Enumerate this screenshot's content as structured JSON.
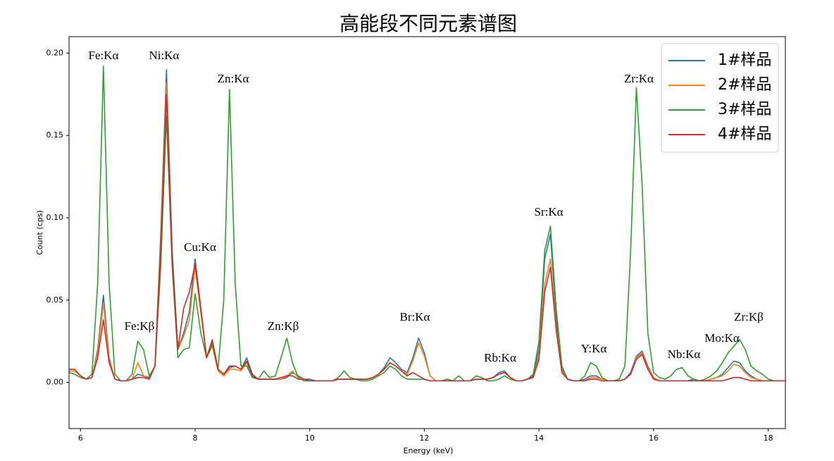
{
  "chart_data": {
    "type": "line",
    "title": "高能段不同元素谱图",
    "xlabel": "Energy (keV)",
    "ylabel": "Count (cps)",
    "xlim": [
      5.8,
      18.3
    ],
    "ylim": [
      -0.028,
      0.21
    ],
    "xticks": [
      6,
      8,
      10,
      12,
      14,
      16,
      18
    ],
    "yticks": [
      {
        "value": 0,
        "label": "0.00"
      },
      0.05,
      {
        "value": 0.1,
        "label": "0.10"
      },
      0.15,
      {
        "value": 0.2,
        "label": "0.20"
      }
    ],
    "grid": false,
    "legend": "upper right",
    "annotations": [
      "Fe:Kα",
      "Ni:Kα",
      "Zn:Kα",
      "Cu:Kα",
      "Fe:Kβ",
      "Zn:Kβ",
      "Br:Kα",
      "Rb:Kα",
      "Sr:Kα",
      "Y:Kα",
      "Zr:Kα",
      "Nb:Kα",
      "Mo:Kα",
      "Zr:Kβ"
    ],
    "x": [
      5.8,
      5.9,
      6.0,
      6.1,
      6.2,
      6.3,
      6.4,
      6.5,
      6.6,
      6.7,
      6.8,
      6.9,
      7.0,
      7.1,
      7.2,
      7.3,
      7.4,
      7.5,
      7.6,
      7.7,
      7.8,
      7.9,
      8.0,
      8.1,
      8.2,
      8.3,
      8.4,
      8.5,
      8.6,
      8.7,
      8.8,
      8.9,
      9.0,
      9.1,
      9.2,
      9.3,
      9.4,
      9.5,
      9.6,
      9.7,
      9.8,
      9.9,
      10.0,
      10.1,
      10.2,
      10.3,
      10.4,
      10.5,
      10.6,
      10.7,
      10.8,
      10.9,
      11.0,
      11.1,
      11.2,
      11.3,
      11.4,
      11.5,
      11.6,
      11.7,
      11.8,
      11.9,
      12.0,
      12.1,
      12.2,
      12.3,
      12.4,
      12.5,
      12.6,
      12.7,
      12.8,
      12.9,
      13.0,
      13.1,
      13.2,
      13.3,
      13.4,
      13.5,
      13.6,
      13.7,
      13.8,
      13.9,
      14.0,
      14.1,
      14.2,
      14.3,
      14.4,
      14.5,
      14.6,
      14.7,
      14.8,
      14.9,
      15.0,
      15.1,
      15.2,
      15.3,
      15.4,
      15.5,
      15.6,
      15.7,
      15.8,
      15.9,
      16.0,
      16.1,
      16.2,
      16.3,
      16.4,
      16.5,
      16.6,
      16.7,
      16.8,
      16.9,
      17.0,
      17.1,
      17.2,
      17.3,
      17.4,
      17.5,
      17.6,
      17.7,
      17.8,
      17.9,
      18.0,
      18.1,
      18.2,
      18.3
    ],
    "series": [
      {
        "name": "1#样品",
        "color": "#1f77b4",
        "values": [
          0.007,
          0.007,
          0.004,
          0.002,
          0.003,
          0.02,
          0.053,
          0.015,
          0.002,
          0.001,
          0.001,
          0.002,
          0.005,
          0.004,
          0.003,
          0.01,
          0.09,
          0.19,
          0.08,
          0.02,
          0.03,
          0.043,
          0.075,
          0.045,
          0.015,
          0.025,
          0.008,
          0.005,
          0.01,
          0.01,
          0.008,
          0.015,
          0.005,
          0.002,
          0.002,
          0.002,
          0.002,
          0.002,
          0.003,
          0.006,
          0.004,
          0.002,
          0.002,
          0.001,
          0.001,
          0.001,
          0.001,
          0.002,
          0.002,
          0.002,
          0.002,
          0.002,
          0.002,
          0.003,
          0.005,
          0.009,
          0.015,
          0.012,
          0.008,
          0.006,
          0.015,
          0.027,
          0.018,
          0.004,
          0.001,
          0.001,
          0.001,
          0.001,
          0.001,
          0.001,
          0.001,
          0.002,
          0.002,
          0.002,
          0.003,
          0.006,
          0.007,
          0.003,
          0.001,
          0.001,
          0.002,
          0.004,
          0.02,
          0.075,
          0.09,
          0.04,
          0.008,
          0.002,
          0.001,
          0.001,
          0.002,
          0.004,
          0.004,
          0.002,
          0.001,
          0.001,
          0.001,
          0.002,
          0.006,
          0.016,
          0.019,
          0.01,
          0.003,
          0.001,
          0.001,
          0.001,
          0.001,
          0.001,
          0.001,
          0.002,
          0.001,
          0.001,
          0.002,
          0.003,
          0.005,
          0.009,
          0.013,
          0.012,
          0.007,
          0.004,
          0.002,
          0.001,
          0.001,
          0.001,
          0.001,
          0.001
        ]
      },
      {
        "name": "2#样品",
        "color": "#ff7f0e",
        "values": [
          0.007,
          0.007,
          0.004,
          0.002,
          0.003,
          0.018,
          0.048,
          0.014,
          0.002,
          0.001,
          0.001,
          0.002,
          0.012,
          0.004,
          0.002,
          0.01,
          0.085,
          0.182,
          0.075,
          0.02,
          0.028,
          0.038,
          0.07,
          0.042,
          0.015,
          0.022,
          0.007,
          0.004,
          0.008,
          0.008,
          0.007,
          0.012,
          0.004,
          0.002,
          0.002,
          0.002,
          0.002,
          0.002,
          0.004,
          0.007,
          0.003,
          0.002,
          0.001,
          0.001,
          0.001,
          0.001,
          0.001,
          0.002,
          0.002,
          0.002,
          0.002,
          0.002,
          0.002,
          0.003,
          0.005,
          0.008,
          0.012,
          0.01,
          0.007,
          0.005,
          0.013,
          0.024,
          0.016,
          0.004,
          0.001,
          0.001,
          0.001,
          0.001,
          0.001,
          0.001,
          0.001,
          0.002,
          0.002,
          0.002,
          0.003,
          0.005,
          0.006,
          0.003,
          0.001,
          0.001,
          0.002,
          0.003,
          0.016,
          0.06,
          0.075,
          0.034,
          0.007,
          0.002,
          0.001,
          0.001,
          0.001,
          0.003,
          0.003,
          0.002,
          0.001,
          0.001,
          0.001,
          0.002,
          0.005,
          0.015,
          0.018,
          0.009,
          0.003,
          0.001,
          0.001,
          0.001,
          0.001,
          0.001,
          0.001,
          0.001,
          0.001,
          0.001,
          0.002,
          0.003,
          0.004,
          0.007,
          0.011,
          0.01,
          0.006,
          0.003,
          0.002,
          0.001,
          0.001,
          0.001,
          0.001,
          0.001
        ]
      },
      {
        "name": "3#样品",
        "color": "#2ca02c",
        "values": [
          0.006,
          0.005,
          0.003,
          0.002,
          0.005,
          0.06,
          0.192,
          0.06,
          0.005,
          0.001,
          0.001,
          0.005,
          0.025,
          0.02,
          0.004,
          0.01,
          0.07,
          0.162,
          0.07,
          0.015,
          0.02,
          0.021,
          0.054,
          0.03,
          0.015,
          0.023,
          0.008,
          0.05,
          0.178,
          0.06,
          0.01,
          0.01,
          0.003,
          0.002,
          0.007,
          0.003,
          0.004,
          0.015,
          0.027,
          0.012,
          0.003,
          0.001,
          0.001,
          0.001,
          0.001,
          0.001,
          0.001,
          0.003,
          0.007,
          0.003,
          0.002,
          0.001,
          0.001,
          0.002,
          0.004,
          0.006,
          0.01,
          0.008,
          0.004,
          0.002,
          0.002,
          0.002,
          0.002,
          0.001,
          0.001,
          0.001,
          0.002,
          0.001,
          0.004,
          0.001,
          0.001,
          0.004,
          0.003,
          0.001,
          0.001,
          0.002,
          0.004,
          0.002,
          0.001,
          0.001,
          0.002,
          0.005,
          0.025,
          0.08,
          0.095,
          0.045,
          0.01,
          0.002,
          0.001,
          0.001,
          0.004,
          0.012,
          0.01,
          0.003,
          0.001,
          0.001,
          0.002,
          0.01,
          0.08,
          0.179,
          0.12,
          0.03,
          0.006,
          0.003,
          0.002,
          0.004,
          0.008,
          0.009,
          0.004,
          0.002,
          0.001,
          0.002,
          0.004,
          0.007,
          0.012,
          0.018,
          0.022,
          0.026,
          0.02,
          0.01,
          0.007,
          0.005,
          0.002,
          0.001,
          0.001,
          0.001
        ]
      },
      {
        "name": "4#样品",
        "color": "#d62728",
        "values": [
          0.008,
          0.008,
          0.004,
          0.002,
          0.003,
          0.015,
          0.038,
          0.012,
          0.002,
          0.001,
          0.001,
          0.002,
          0.003,
          0.003,
          0.002,
          0.01,
          0.08,
          0.175,
          0.075,
          0.02,
          0.045,
          0.055,
          0.072,
          0.045,
          0.015,
          0.026,
          0.008,
          0.005,
          0.009,
          0.01,
          0.008,
          0.013,
          0.004,
          0.002,
          0.002,
          0.002,
          0.002,
          0.003,
          0.004,
          0.004,
          0.002,
          0.002,
          0.001,
          0.001,
          0.001,
          0.001,
          0.001,
          0.002,
          0.002,
          0.002,
          0.002,
          0.002,
          0.002,
          0.003,
          0.005,
          0.008,
          0.012,
          0.01,
          0.007,
          0.004,
          0.006,
          0.004,
          0.002,
          0.001,
          0.001,
          0.001,
          0.001,
          0.001,
          0.001,
          0.001,
          0.001,
          0.002,
          0.002,
          0.002,
          0.003,
          0.005,
          0.006,
          0.003,
          0.001,
          0.001,
          0.002,
          0.003,
          0.014,
          0.055,
          0.07,
          0.032,
          0.006,
          0.002,
          0.001,
          0.001,
          0.001,
          0.002,
          0.002,
          0.001,
          0.001,
          0.001,
          0.001,
          0.002,
          0.005,
          0.014,
          0.017,
          0.008,
          0.002,
          0.001,
          0.001,
          0.001,
          0.001,
          0.001,
          0.001,
          0.001,
          0.001,
          0.001,
          0.001,
          0.001,
          0.001,
          0.002,
          0.003,
          0.003,
          0.002,
          0.001,
          0.001,
          0.001,
          0.001,
          0.001,
          0.001,
          0.001
        ]
      }
    ]
  }
}
